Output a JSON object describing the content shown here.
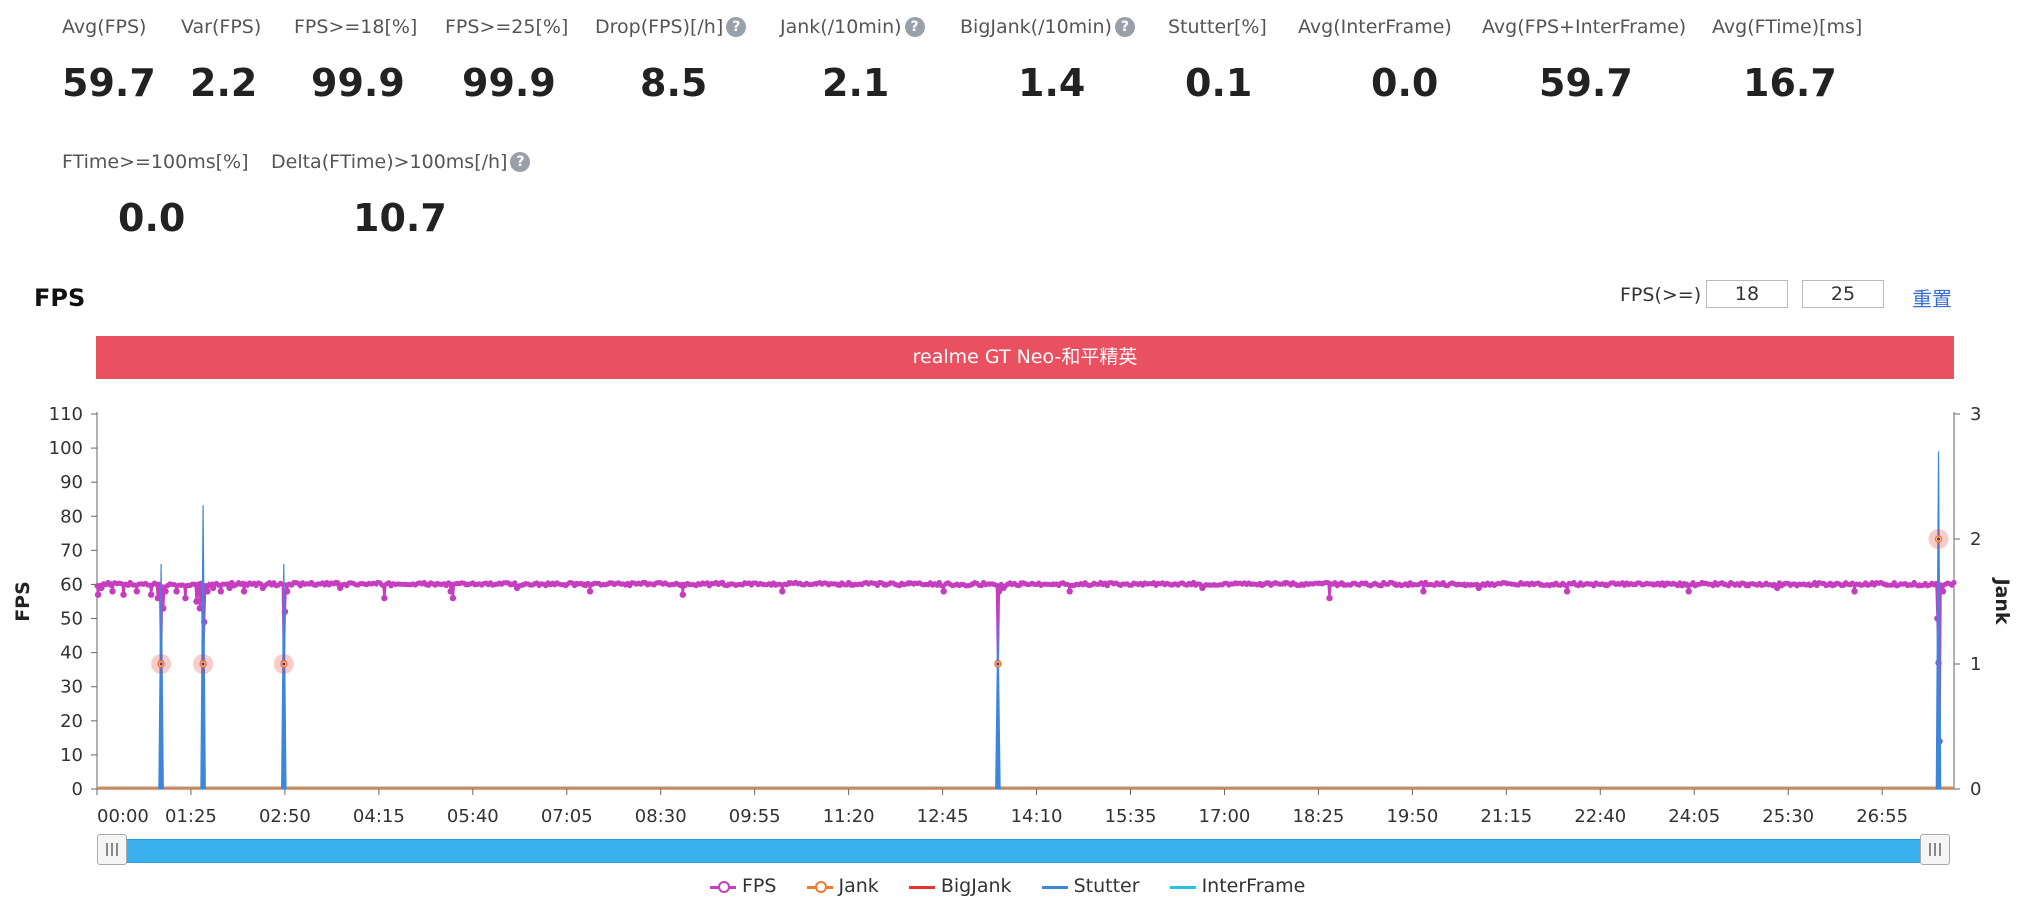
{
  "metrics_row1": [
    {
      "label": "Avg(FPS)",
      "value": "59.7",
      "help": false
    },
    {
      "label": "Var(FPS)",
      "value": "2.2",
      "help": false
    },
    {
      "label": "FPS>=18[%]",
      "value": "99.9",
      "help": false
    },
    {
      "label": "FPS>=25[%]",
      "value": "99.9",
      "help": false
    },
    {
      "label": "Drop(FPS)[/h]",
      "value": "8.5",
      "help": true
    },
    {
      "label": "Jank(/10min)",
      "value": "2.1",
      "help": true
    },
    {
      "label": "BigJank(/10min)",
      "value": "1.4",
      "help": true
    },
    {
      "label": "Stutter[%]",
      "value": "0.1",
      "help": false
    },
    {
      "label": "Avg(InterFrame)",
      "value": "0.0",
      "help": false
    },
    {
      "label": "Avg(FPS+InterFrame)",
      "value": "59.7",
      "help": false
    },
    {
      "label": "Avg(FTime)[ms]",
      "value": "16.7",
      "help": false
    }
  ],
  "metrics_row2": [
    {
      "label": "FTime>=100ms[%]",
      "value": "0.0",
      "help": false
    },
    {
      "label": "Delta(FTime)>100ms[/h]",
      "value": "10.7",
      "help": true
    }
  ],
  "help_glyph": "?",
  "chart_header": {
    "title": "FPS",
    "filter_label": "FPS(>=)",
    "filter_min": "18",
    "filter_max": "25",
    "reset_label": "重置"
  },
  "banner": "realme GT Neo-和平精英",
  "chart_data": {
    "type": "line",
    "title": "realme GT Neo-和平精英",
    "ylabel": "FPS",
    "y2label": "Jank",
    "ylim": [
      0,
      110
    ],
    "y2lim": [
      0,
      3
    ],
    "x_ticks": [
      "00:00",
      "01:25",
      "02:50",
      "04:15",
      "05:40",
      "07:05",
      "08:30",
      "09:55",
      "11:20",
      "12:45",
      "14:10",
      "15:35",
      "17:00",
      "18:25",
      "19:50",
      "21:15",
      "22:40",
      "24:05",
      "25:30",
      "26:55"
    ],
    "x_tick_seconds": [
      0,
      85,
      170,
      255,
      340,
      425,
      510,
      595,
      680,
      765,
      850,
      935,
      1020,
      1105,
      1190,
      1275,
      1360,
      1445,
      1530,
      1615
    ],
    "x_max_seconds": 1680,
    "y_ticks": [
      0,
      10,
      20,
      30,
      40,
      50,
      60,
      70,
      80,
      90,
      100,
      110
    ],
    "y2_ticks": [
      0,
      1,
      2,
      3
    ],
    "grid": false,
    "legend_position": "bottom",
    "series": [
      {
        "name": "FPS",
        "axis": "left",
        "color": "#c63dbf",
        "baseline": 60,
        "dips": [
          [
            1,
            57
          ],
          [
            4,
            59
          ],
          [
            14,
            58
          ],
          [
            24,
            57
          ],
          [
            36,
            58
          ],
          [
            49,
            57
          ],
          [
            55,
            56
          ],
          [
            58,
            37
          ],
          [
            60,
            53
          ],
          [
            62,
            58
          ],
          [
            72,
            58
          ],
          [
            80,
            56
          ],
          [
            90,
            55
          ],
          [
            93,
            53
          ],
          [
            96,
            37
          ],
          [
            97,
            49
          ],
          [
            100,
            58
          ],
          [
            105,
            59
          ],
          [
            112,
            58
          ],
          [
            120,
            59
          ],
          [
            133,
            58
          ],
          [
            150,
            59
          ],
          [
            169,
            37
          ],
          [
            170,
            52
          ],
          [
            172,
            58
          ],
          [
            220,
            59
          ],
          [
            260,
            56
          ],
          [
            320,
            58
          ],
          [
            322,
            56
          ],
          [
            380,
            59
          ],
          [
            446,
            58
          ],
          [
            530,
            57
          ],
          [
            620,
            58
          ],
          [
            766,
            58
          ],
          [
            815,
            37
          ],
          [
            816,
            58
          ],
          [
            820,
            59
          ],
          [
            880,
            58
          ],
          [
            1000,
            59
          ],
          [
            1115,
            56
          ],
          [
            1200,
            58
          ],
          [
            1250,
            59
          ],
          [
            1330,
            58
          ],
          [
            1440,
            58
          ],
          [
            1520,
            59
          ],
          [
            1590,
            58
          ],
          [
            1665,
            50
          ],
          [
            1666,
            37
          ],
          [
            1667,
            14
          ],
          [
            1670,
            58
          ]
        ]
      },
      {
        "name": "Jank",
        "axis": "right",
        "color": "#ef7a30",
        "points": [
          [
            58,
            1
          ],
          [
            96,
            1
          ],
          [
            169,
            1
          ],
          [
            815,
            1
          ],
          [
            1666,
            2
          ]
        ]
      },
      {
        "name": "BigJank",
        "axis": "right",
        "color": "#e5332f",
        "points": [
          [
            58,
            1
          ],
          [
            96,
            1
          ],
          [
            169,
            1
          ],
          [
            1666,
            2
          ]
        ]
      },
      {
        "name": "Stutter",
        "axis": "right",
        "color": "#3d86dc",
        "spikes": [
          [
            58,
            1.8
          ],
          [
            96,
            2.27
          ],
          [
            169,
            1.8
          ],
          [
            815,
            1.35
          ],
          [
            1666,
            2.7
          ]
        ]
      },
      {
        "name": "InterFrame",
        "axis": "right",
        "color": "#28c0e6",
        "points": []
      }
    ]
  },
  "legend": [
    {
      "name": "FPS",
      "color": "#c63dbf",
      "marker": true
    },
    {
      "name": "Jank",
      "color": "#ef7a30",
      "marker": true
    },
    {
      "name": "BigJank",
      "color": "#e5332f",
      "marker": false
    },
    {
      "name": "Stutter",
      "color": "#3d86dc",
      "marker": false
    },
    {
      "name": "InterFrame",
      "color": "#28c0e6",
      "marker": false
    }
  ]
}
